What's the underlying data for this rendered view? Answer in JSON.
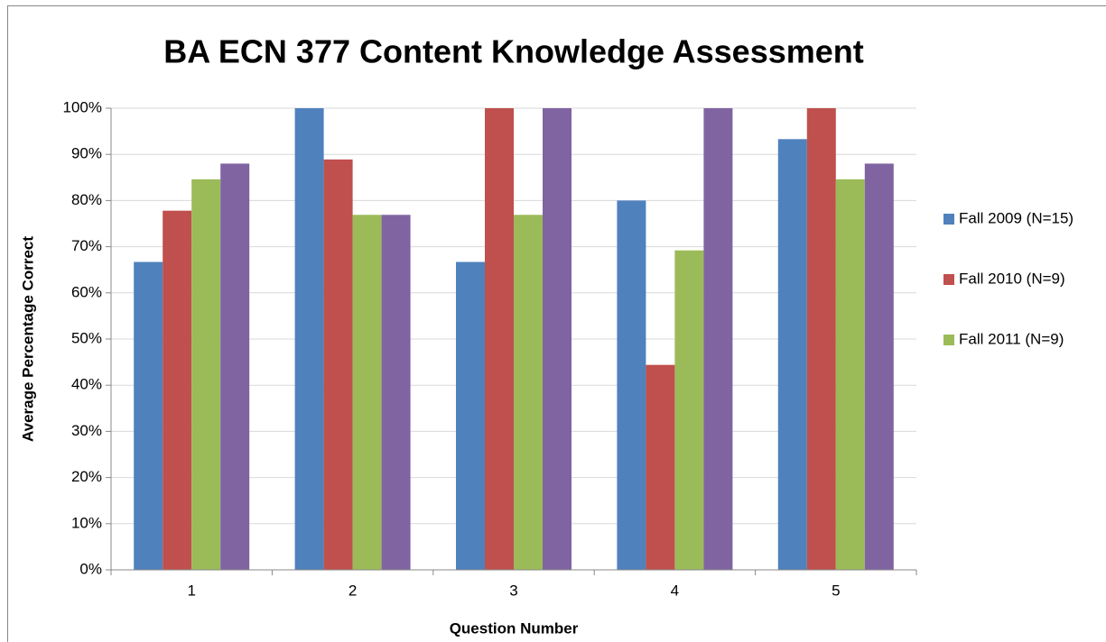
{
  "chart_data": {
    "type": "bar",
    "title": "BA ECN 377 Content Knowledge Assessment",
    "x_label": "Question Number",
    "y_label": "Average Percentage Correct",
    "categories": [
      "1",
      "2",
      "3",
      "4",
      "5"
    ],
    "series": [
      {
        "name": "Fall 2009 (N=15)",
        "color": "#4f81bd",
        "values": [
          66.7,
          100,
          66.7,
          80,
          93.3
        ]
      },
      {
        "name": "Fall 2010 (N=9)",
        "color": "#c0504d",
        "values": [
          77.8,
          88.9,
          100,
          44.4,
          100
        ]
      },
      {
        "name": "Fall 2011 (N=9)",
        "color": "#9bbb59",
        "values": [
          84.6,
          76.9,
          76.9,
          69.2,
          84.6
        ]
      },
      {
        "color": "#8064a2",
        "values": [
          88,
          76.9,
          100,
          100,
          88
        ]
      }
    ],
    "ylim": [
      0,
      100
    ],
    "yticks": [
      {
        "value": 0,
        "label": "0%"
      },
      {
        "value": 10,
        "label": "10%"
      },
      {
        "value": 20,
        "label": "20%"
      },
      {
        "value": 30,
        "label": "30%"
      },
      {
        "value": 40,
        "label": "40%"
      },
      {
        "value": 50,
        "label": "50%"
      },
      {
        "value": 60,
        "label": "60%"
      },
      {
        "value": 70,
        "label": "70%"
      },
      {
        "value": 80,
        "label": "80%"
      },
      {
        "value": 90,
        "label": "90%"
      },
      {
        "value": 100,
        "label": "100%"
      }
    ],
    "grid": true,
    "legend": "right"
  }
}
